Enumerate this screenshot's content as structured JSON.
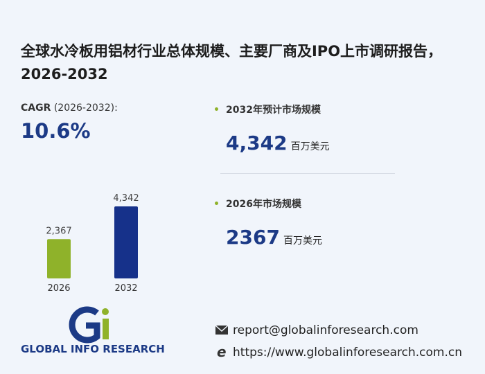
{
  "header": {
    "title": "全球水冷板用铝材行业总体规模、主要厂商及IPO上市调研报告，2026-2032"
  },
  "cagr": {
    "label": "CAGR",
    "period": "(2026-2032):",
    "value": "10.6%"
  },
  "stats": [
    {
      "label": "2032年预计市场规模",
      "value": "4,342",
      "unit": "百万美元"
    },
    {
      "label": "2026年市场规模",
      "value": "2367",
      "unit": "百万美元"
    }
  ],
  "chart_data": {
    "type": "bar",
    "categories": [
      "2026",
      "2032"
    ],
    "values": [
      2367,
      4342
    ],
    "value_labels": [
      "2,367",
      "4,342"
    ],
    "colors": [
      "#8fb22a",
      "#16318a"
    ]
  },
  "logo": {
    "text": "GLOBAL INFO RESEARCH"
  },
  "contact": {
    "email": "report@globalinforesearch.com",
    "url": "https://www.globalinforesearch.com.cn"
  }
}
